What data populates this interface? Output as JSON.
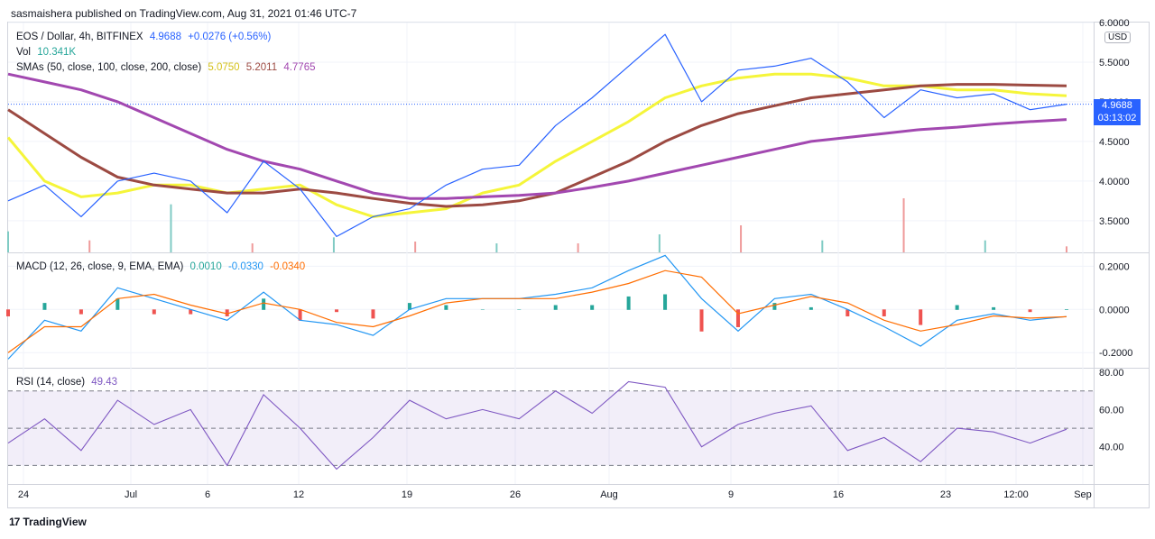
{
  "header": {
    "publisher": "sasmaishera published on TradingView.com, Aug 31, 2021 01:46 UTC-7"
  },
  "footer": {
    "brand": "TradingView",
    "brand_mark": "17"
  },
  "price_axis": {
    "currency": "USD",
    "last_price": "4.9688",
    "countdown": "03:13:02",
    "ticks": [
      "6.0000",
      "5.5000",
      "5.0000",
      "4.5000",
      "4.0000",
      "3.5000"
    ]
  },
  "macd_axis": {
    "ticks": [
      "0.2000",
      "0.0000",
      "-0.2000"
    ]
  },
  "rsi_axis": {
    "ticks": [
      "80.00",
      "60.00",
      "40.00"
    ]
  },
  "x_axis": {
    "ticks": [
      "24",
      "Jul",
      "6",
      "12",
      "19",
      "26",
      "Aug",
      "9",
      "16",
      "23",
      "12:00",
      "Sep"
    ]
  },
  "legend_main": {
    "symbol": "EOS / Dollar, 4h, BITFINEX",
    "price": "4.9688",
    "change": "+0.0276 (+0.56%)",
    "vol_label": "Vol",
    "vol_value": "10.341K",
    "sma_label": "SMAs (50, close, 100, close, 200, close)",
    "sma50": "5.0750",
    "sma100": "5.2011",
    "sma200": "4.7765"
  },
  "legend_macd": {
    "label": "MACD (12, 26, close, 9, EMA, EMA)",
    "hist": "0.0010",
    "macd": "-0.0330",
    "signal": "-0.0340"
  },
  "legend_rsi": {
    "label": "RSI (14, close)",
    "value": "49.43"
  },
  "colors": {
    "price": "#2962ff",
    "sma50": "#f5f53a",
    "sma100": "#9c4a42",
    "sma200": "#a248b0",
    "macd": "#2196f3",
    "signal": "#ff6d00",
    "rsi": "#7e57c2",
    "hist_pos": "#26a69a",
    "hist_neg": "#ef5350"
  },
  "chart_data": [
    {
      "type": "line",
      "title": "EOS / Dollar, 4h, BITFINEX",
      "x": [
        "Jun 22",
        "Jun 24",
        "Jun 27",
        "Jul 1",
        "Jul 4",
        "Jul 6",
        "Jul 9",
        "Jul 12",
        "Jul 15",
        "Jul 19",
        "Jul 22",
        "Jul 26",
        "Jul 29",
        "Aug 1",
        "Aug 5",
        "Aug 9",
        "Aug 12",
        "Aug 14",
        "Aug 16",
        "Aug 18",
        "Aug 20",
        "Aug 22",
        "Aug 23",
        "Aug 24",
        "Aug 26",
        "Aug 27",
        "Aug 28",
        "Aug 29",
        "Aug 30",
        "Aug 31"
      ],
      "ylim": [
        3.1,
        6.0
      ],
      "series": [
        {
          "name": "EOS / Dollar",
          "values": [
            3.75,
            3.95,
            3.55,
            4.0,
            4.1,
            4.0,
            3.6,
            4.25,
            3.9,
            3.3,
            3.55,
            3.65,
            3.95,
            4.15,
            4.2,
            4.7,
            5.05,
            5.45,
            5.85,
            5.0,
            5.4,
            5.45,
            5.55,
            5.25,
            4.8,
            5.15,
            5.05,
            5.1,
            4.9,
            4.97
          ]
        },
        {
          "name": "SMA 50",
          "values": [
            4.55,
            4.0,
            3.8,
            3.85,
            3.95,
            3.95,
            3.85,
            3.9,
            3.95,
            3.7,
            3.55,
            3.6,
            3.65,
            3.85,
            3.95,
            4.25,
            4.5,
            4.75,
            5.05,
            5.2,
            5.3,
            5.35,
            5.35,
            5.3,
            5.2,
            5.2,
            5.15,
            5.15,
            5.1,
            5.075
          ]
        },
        {
          "name": "SMA 100",
          "values": [
            4.9,
            4.6,
            4.3,
            4.05,
            3.95,
            3.9,
            3.85,
            3.85,
            3.9,
            3.85,
            3.78,
            3.72,
            3.68,
            3.7,
            3.75,
            3.85,
            4.05,
            4.25,
            4.5,
            4.7,
            4.85,
            4.95,
            5.05,
            5.1,
            5.15,
            5.2,
            5.22,
            5.22,
            5.21,
            5.2011
          ]
        },
        {
          "name": "SMA 200",
          "values": [
            5.35,
            5.25,
            5.15,
            5.0,
            4.8,
            4.6,
            4.4,
            4.25,
            4.15,
            4.0,
            3.85,
            3.78,
            3.78,
            3.8,
            3.82,
            3.85,
            3.92,
            4.0,
            4.1,
            4.2,
            4.3,
            4.4,
            4.5,
            4.55,
            4.6,
            4.65,
            4.68,
            4.72,
            4.75,
            4.7765
          ]
        }
      ]
    },
    {
      "type": "bar",
      "title": "Vol",
      "x": [
        "Jun 22",
        "Jun 27",
        "Jul 4",
        "Jul 9",
        "Jul 15",
        "Jul 22",
        "Jul 29",
        "Aug 5",
        "Aug 12",
        "Aug 16",
        "Aug 20",
        "Aug 24",
        "Aug 28",
        "Aug 31"
      ],
      "values": [
        3.5,
        2.0,
        8.0,
        1.5,
        2.5,
        1.8,
        1.5,
        1.5,
        3.0,
        4.5,
        2.0,
        9.0,
        2.0,
        1.0
      ]
    },
    {
      "type": "line",
      "title": "MACD (12, 26, close, 9, EMA, EMA)",
      "x": [
        "Jun 22",
        "Jun 24",
        "Jun 27",
        "Jul 1",
        "Jul 4",
        "Jul 6",
        "Jul 9",
        "Jul 12",
        "Jul 15",
        "Jul 19",
        "Jul 22",
        "Jul 26",
        "Jul 29",
        "Aug 1",
        "Aug 5",
        "Aug 9",
        "Aug 12",
        "Aug 14",
        "Aug 16",
        "Aug 18",
        "Aug 20",
        "Aug 22",
        "Aug 23",
        "Aug 24",
        "Aug 26",
        "Aug 27",
        "Aug 28",
        "Aug 29",
        "Aug 30",
        "Aug 31"
      ],
      "ylim": [
        -0.27,
        0.26
      ],
      "series": [
        {
          "name": "MACD",
          "values": [
            -0.23,
            -0.05,
            -0.1,
            0.1,
            0.05,
            0.0,
            -0.05,
            0.08,
            -0.05,
            -0.07,
            -0.12,
            0.0,
            0.05,
            0.05,
            0.05,
            0.07,
            0.1,
            0.18,
            0.25,
            0.05,
            -0.1,
            0.05,
            0.07,
            -0.0,
            -0.08,
            -0.17,
            -0.05,
            -0.02,
            -0.05,
            -0.033
          ]
        },
        {
          "name": "Signal",
          "values": [
            -0.2,
            -0.08,
            -0.08,
            0.05,
            0.07,
            0.02,
            -0.02,
            0.03,
            0.0,
            -0.06,
            -0.08,
            -0.03,
            0.03,
            0.05,
            0.05,
            0.05,
            0.08,
            0.12,
            0.18,
            0.15,
            -0.02,
            0.02,
            0.06,
            0.03,
            -0.05,
            -0.1,
            -0.07,
            -0.03,
            -0.04,
            -0.034
          ]
        }
      ]
    },
    {
      "type": "line",
      "title": "RSI (14, close)",
      "x": [
        "Jun 22",
        "Jun 24",
        "Jun 27",
        "Jul 1",
        "Jul 4",
        "Jul 6",
        "Jul 9",
        "Jul 12",
        "Jul 15",
        "Jul 19",
        "Jul 22",
        "Jul 26",
        "Jul 29",
        "Aug 1",
        "Aug 5",
        "Aug 9",
        "Aug 12",
        "Aug 14",
        "Aug 16",
        "Aug 18",
        "Aug 20",
        "Aug 22",
        "Aug 23",
        "Aug 24",
        "Aug 26",
        "Aug 27",
        "Aug 28",
        "Aug 29",
        "Aug 30",
        "Aug 31"
      ],
      "ylim": [
        20,
        82
      ],
      "series": [
        {
          "name": "RSI",
          "values": [
            42,
            55,
            38,
            65,
            52,
            60,
            30,
            68,
            50,
            28,
            45,
            65,
            55,
            60,
            55,
            70,
            58,
            75,
            72,
            40,
            52,
            58,
            62,
            38,
            45,
            32,
            50,
            48,
            42,
            49.43
          ]
        }
      ]
    }
  ]
}
